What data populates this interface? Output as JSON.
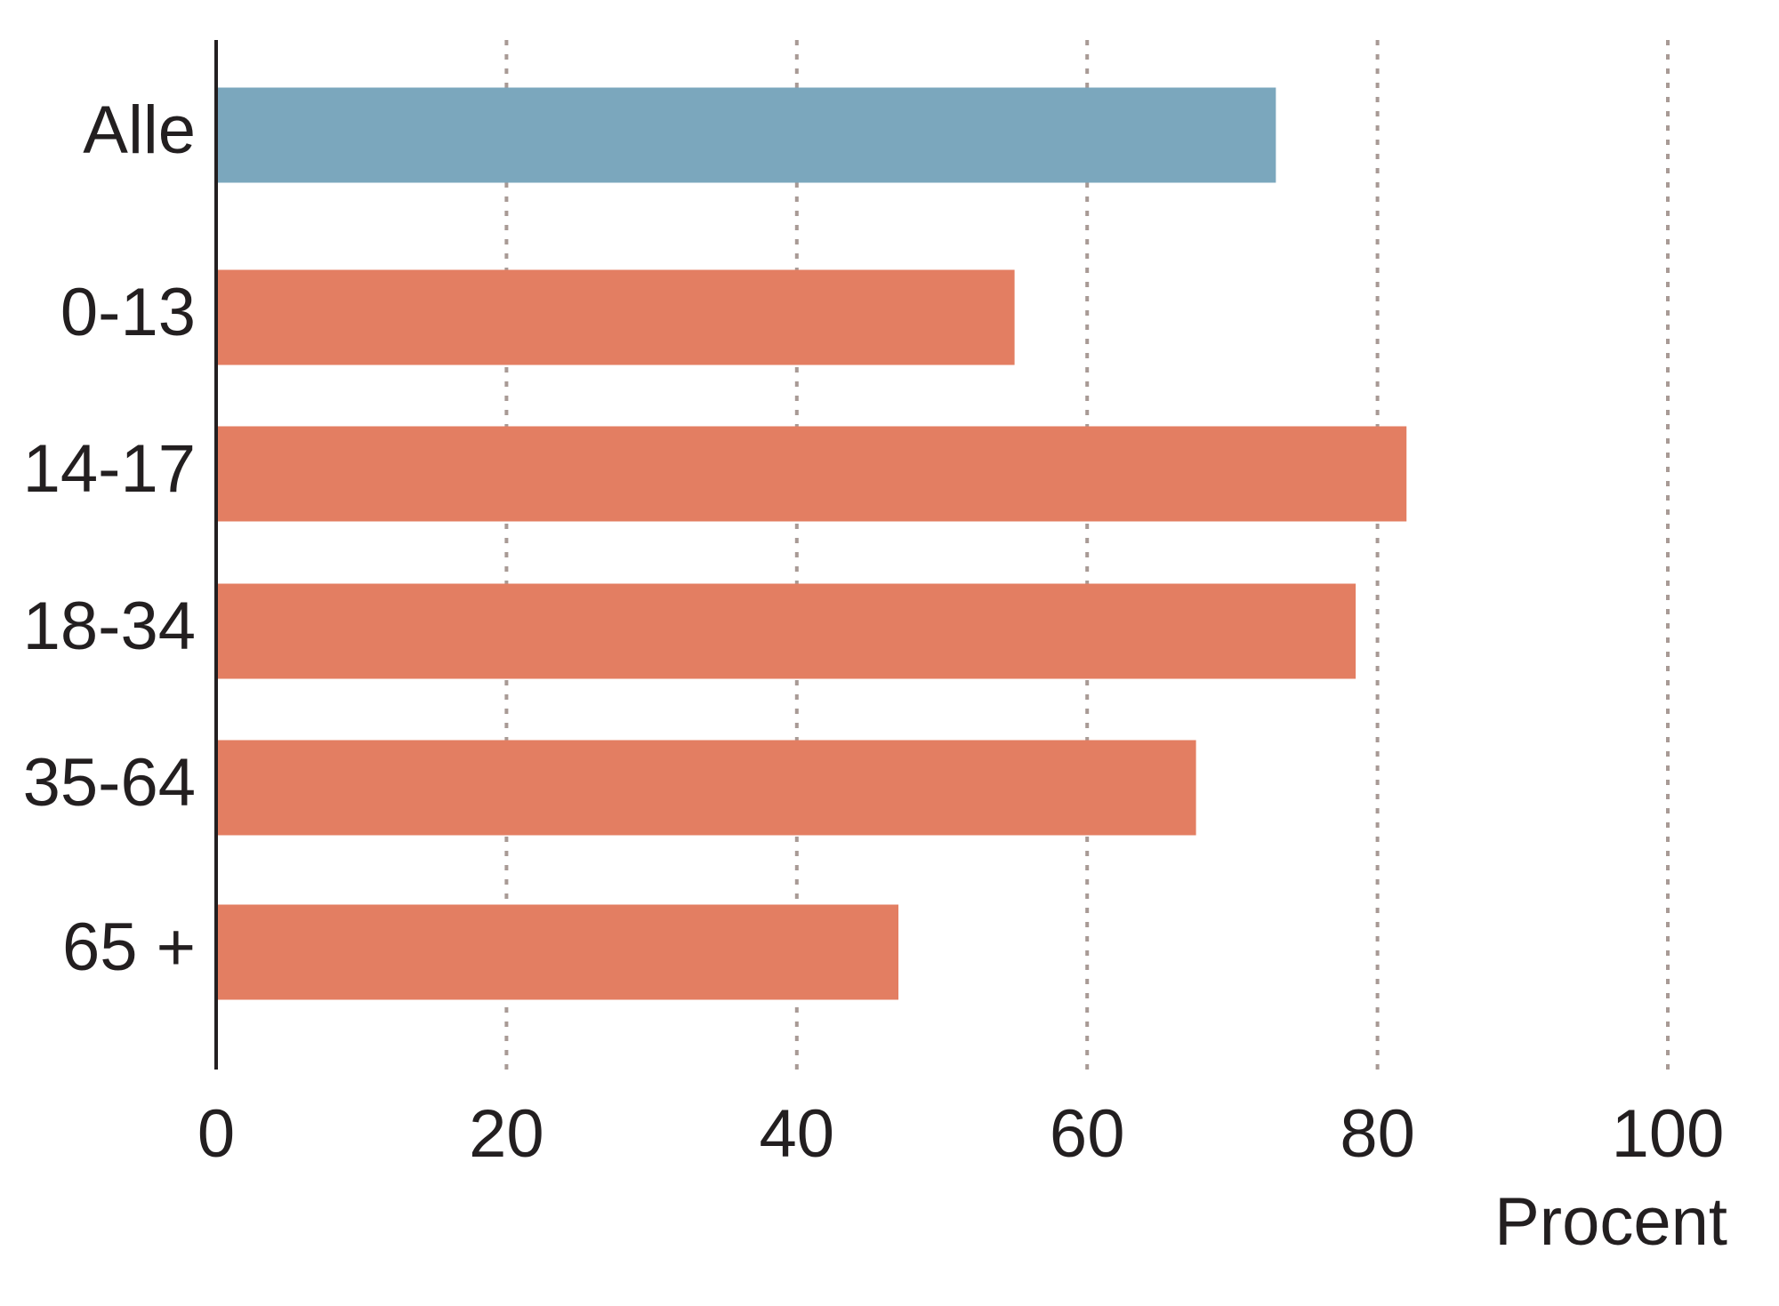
{
  "chart_data": {
    "type": "hbar",
    "categories": [
      "Alle",
      "0-13",
      "14-17",
      "18-34",
      "35-64",
      "65 +"
    ],
    "values": [
      73,
      55,
      82,
      78.5,
      67.5,
      47
    ],
    "colors": [
      "#7ba7bd",
      "#e37e62",
      "#e37e62",
      "#e37e62",
      "#e37e62",
      "#e37e62"
    ],
    "xlim": [
      0,
      100
    ],
    "xticks": [
      0,
      20,
      40,
      60,
      80,
      100
    ],
    "xlabel": "Procent",
    "grid": true
  }
}
